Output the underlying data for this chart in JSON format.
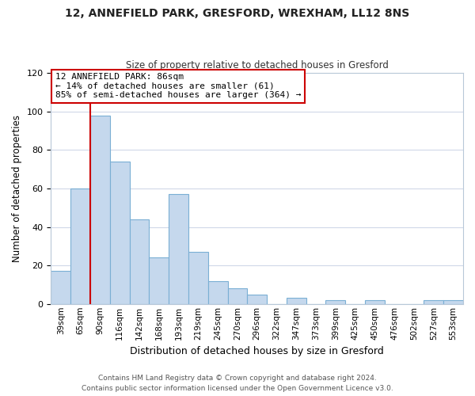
{
  "title1": "12, ANNEFIELD PARK, GRESFORD, WREXHAM, LL12 8NS",
  "title2": "Size of property relative to detached houses in Gresford",
  "xlabel": "Distribution of detached houses by size in Gresford",
  "ylabel": "Number of detached properties",
  "bar_labels": [
    "39sqm",
    "65sqm",
    "90sqm",
    "116sqm",
    "142sqm",
    "168sqm",
    "193sqm",
    "219sqm",
    "245sqm",
    "270sqm",
    "296sqm",
    "322sqm",
    "347sqm",
    "373sqm",
    "399sqm",
    "425sqm",
    "450sqm",
    "476sqm",
    "502sqm",
    "527sqm",
    "553sqm"
  ],
  "bar_values": [
    17,
    60,
    98,
    74,
    44,
    24,
    57,
    27,
    12,
    8,
    5,
    0,
    3,
    0,
    2,
    0,
    2,
    0,
    0,
    2,
    2
  ],
  "bar_color": "#c5d8ed",
  "bar_edge_color": "#7aafd4",
  "vline_x": 1.5,
  "vline_color": "#cc0000",
  "annotation_text_line1": "12 ANNEFIELD PARK: 86sqm",
  "annotation_text_line2": "← 14% of detached houses are smaller (61)",
  "annotation_text_line3": "85% of semi-detached houses are larger (364) →",
  "annotation_box_color": "#cc0000",
  "annotation_fill_color": "#ffffff",
  "ylim": [
    0,
    120
  ],
  "yticks": [
    0,
    20,
    40,
    60,
    80,
    100,
    120
  ],
  "footer1": "Contains HM Land Registry data © Crown copyright and database right 2024.",
  "footer2": "Contains public sector information licensed under the Open Government Licence v3.0.",
  "background_color": "#ffffff",
  "grid_color": "#d0d8e8"
}
